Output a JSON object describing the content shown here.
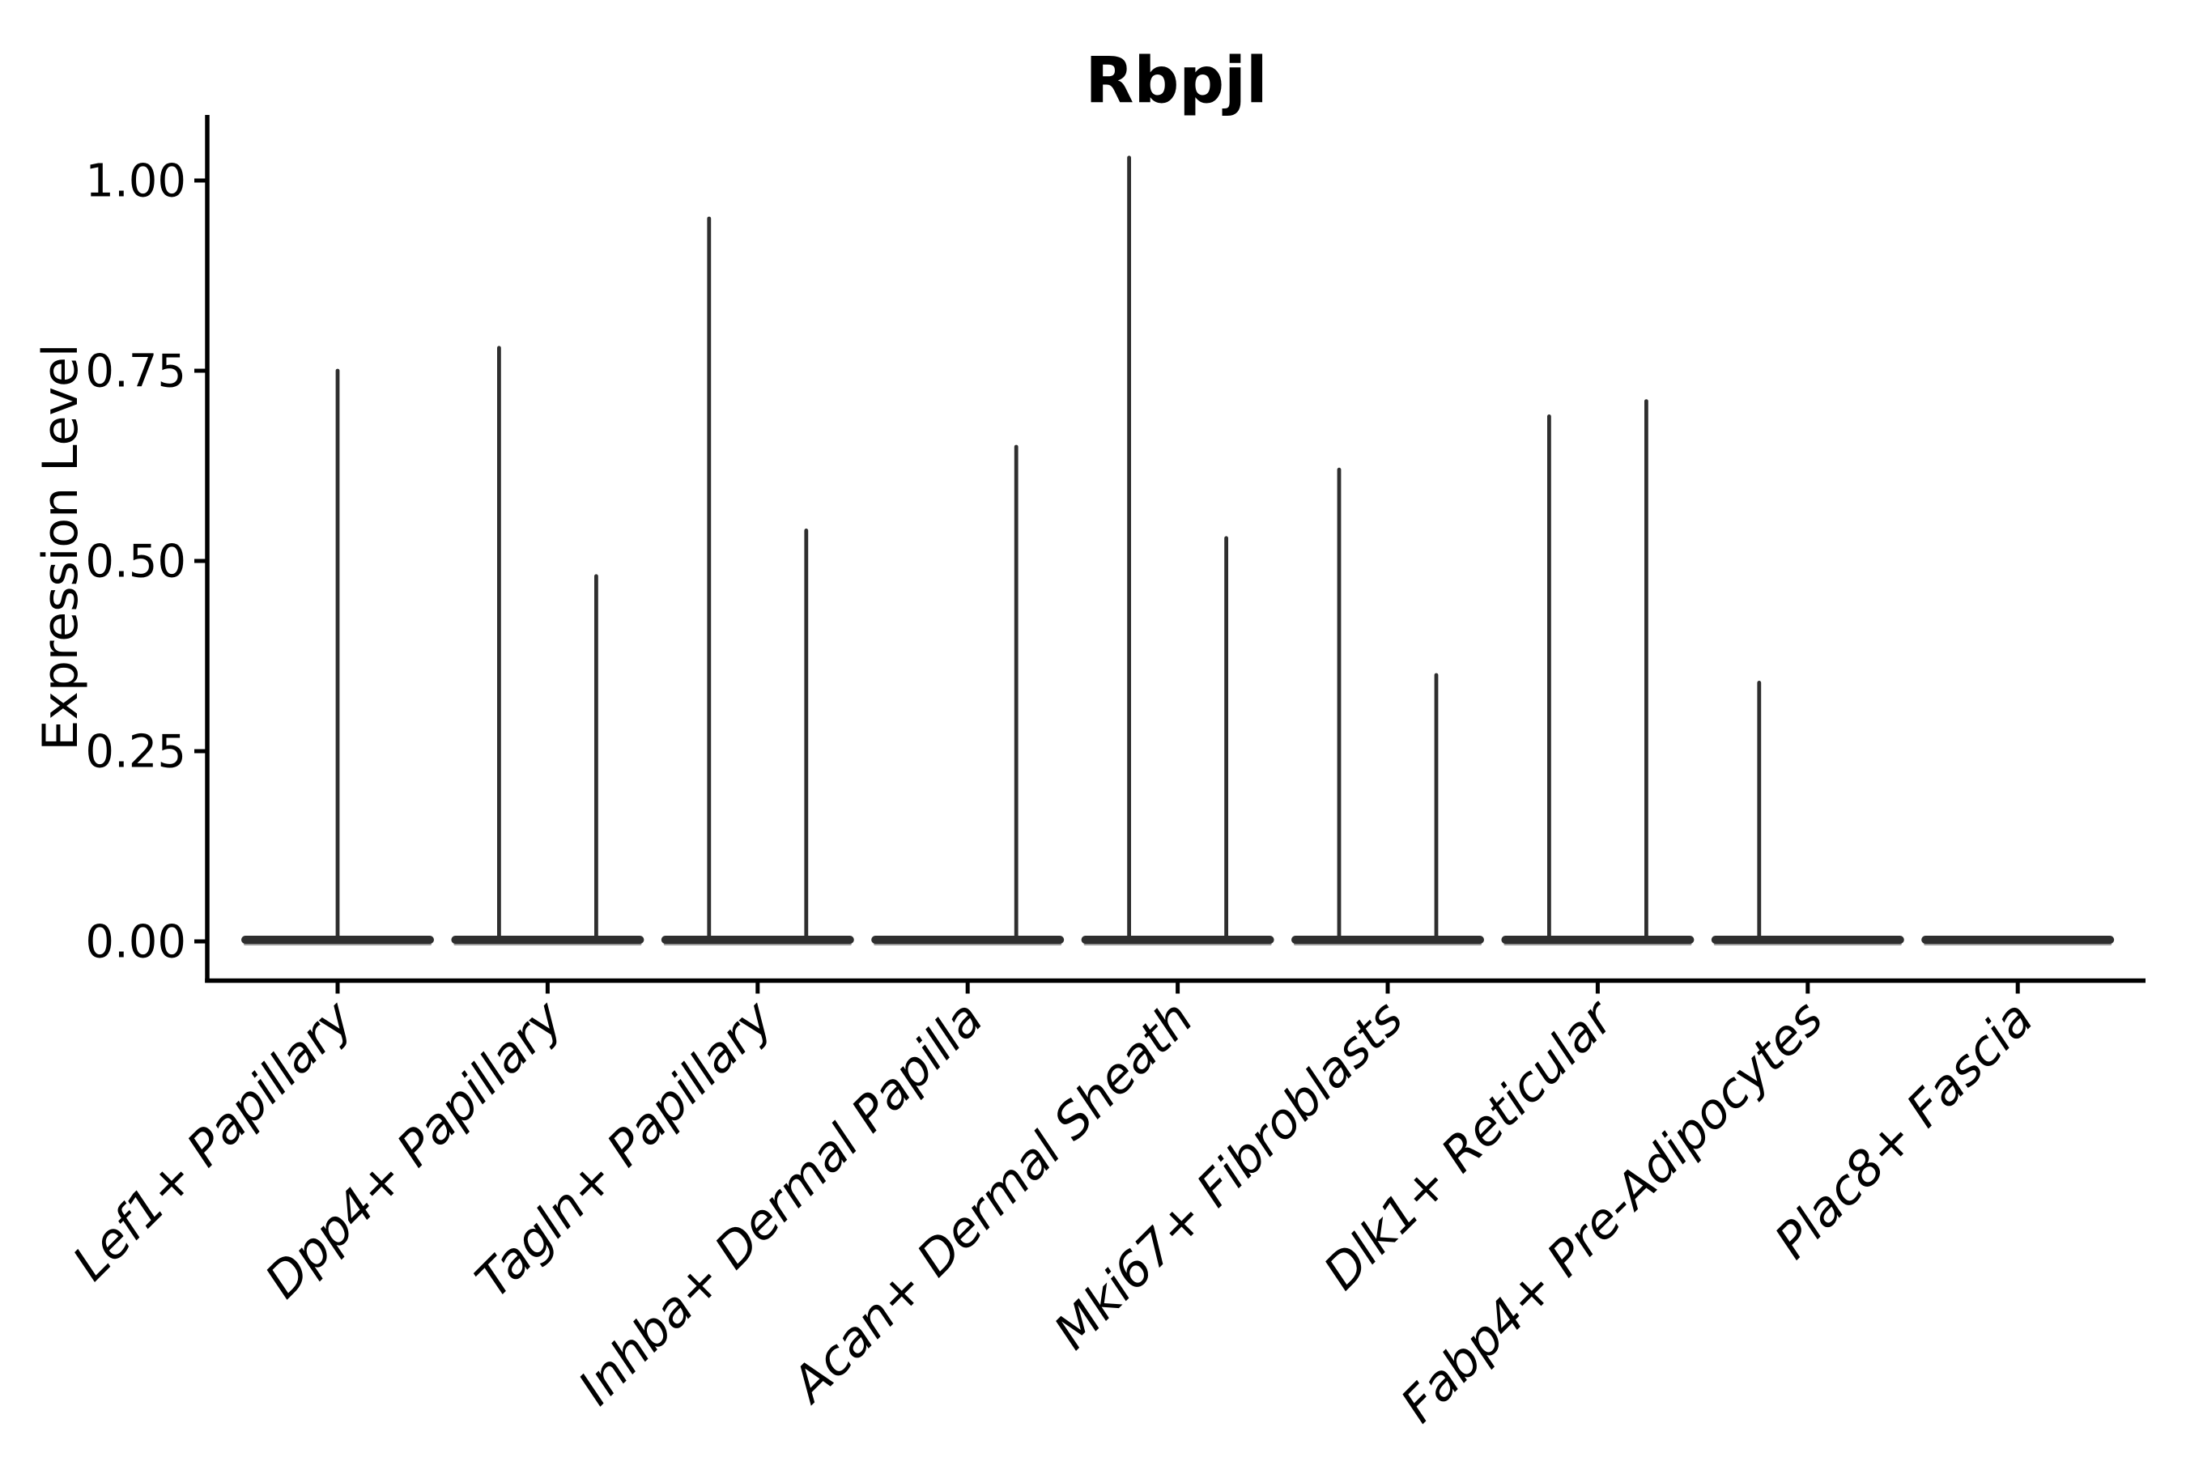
{
  "chart_data": {
    "type": "violin",
    "title": "Rbpjl",
    "xlabel": "",
    "ylabel": "Expression Level",
    "ylim": [
      -0.05,
      1.09
    ],
    "grid": false,
    "legend": "none",
    "yticks": [
      {
        "value": 0.0,
        "label": "0.00"
      },
      {
        "value": 0.25,
        "label": "0.25"
      },
      {
        "value": 0.5,
        "label": "0.50"
      },
      {
        "value": 0.75,
        "label": "0.75"
      },
      {
        "value": 1.0,
        "label": "1.00"
      }
    ],
    "categories": [
      "Lef1+ Papillary",
      "Dpp4+ Papillary",
      "Tagln+ Papillary",
      "Inhba+ Dermal Papilla",
      "Acan+ Dermal Sheath",
      "Mki67+ Fibroblasts",
      "Dlk1+ Reticular",
      "Fabp4+ Pre-Adipocytes",
      "Plac8+ Fascia"
    ],
    "violins": [
      {
        "category": "Lef1+ Papillary",
        "baseline_value": 0,
        "spikes": [
          {
            "offset": 0,
            "max": 0.75
          }
        ]
      },
      {
        "category": "Dpp4+ Papillary",
        "baseline_value": 0,
        "spikes": [
          {
            "offset": -60,
            "max": 0.78
          },
          {
            "offset": 60,
            "max": 0.48
          }
        ]
      },
      {
        "category": "Tagln+ Papillary",
        "baseline_value": 0,
        "spikes": [
          {
            "offset": -60,
            "max": 0.95
          },
          {
            "offset": 60,
            "max": 0.54
          }
        ]
      },
      {
        "category": "Inhba+ Dermal Papilla",
        "baseline_value": 0,
        "spikes": [
          {
            "offset": 60,
            "max": 0.65
          }
        ]
      },
      {
        "category": "Acan+ Dermal Sheath",
        "baseline_value": 0,
        "spikes": [
          {
            "offset": -60,
            "max": 1.03
          },
          {
            "offset": 60,
            "max": 0.53
          }
        ]
      },
      {
        "category": "Mki67+ Fibroblasts",
        "baseline_value": 0,
        "spikes": [
          {
            "offset": -60,
            "max": 0.62
          },
          {
            "offset": 60,
            "max": 0.35
          }
        ]
      },
      {
        "category": "Dlk1+ Reticular",
        "baseline_value": 0,
        "spikes": [
          {
            "offset": -60,
            "max": 0.69
          },
          {
            "offset": 60,
            "max": 0.71
          }
        ]
      },
      {
        "category": "Fabp4+ Pre-Adipocytes",
        "baseline_value": 0,
        "spikes": [
          {
            "offset": -60,
            "max": 0.34
          }
        ]
      },
      {
        "category": "Plac8+ Fascia",
        "baseline_value": 0,
        "spikes": []
      }
    ],
    "style": {
      "violin_color": "#2e2e2e",
      "violin_fringe": "#999999",
      "axis_color": "#000000",
      "text_color": "#000000",
      "background": "#ffffff",
      "x_label_rotation_deg": 45,
      "x_label_italic": true
    }
  }
}
